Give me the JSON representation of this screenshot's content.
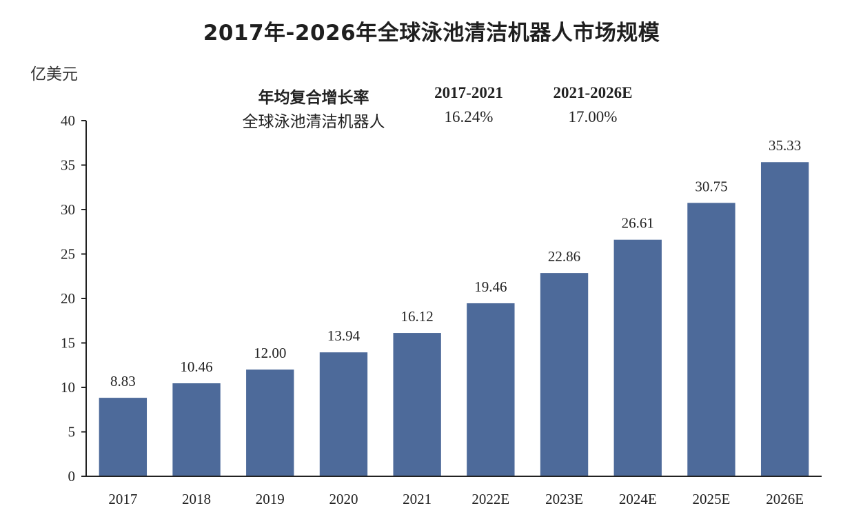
{
  "chart_data": {
    "type": "bar",
    "title": "2017年-2026年全球泳池清洁机器人市场规模",
    "ylabel": "亿美元",
    "xlabel": "",
    "ylim": [
      0,
      40
    ],
    "yticks": [
      "0",
      "5",
      "10",
      "15",
      "20",
      "25",
      "30",
      "35",
      "40"
    ],
    "categories": [
      "2017",
      "2018",
      "2019",
      "2020",
      "2021",
      "2022E",
      "2023E",
      "2024E",
      "2025E",
      "2026E"
    ],
    "values": [
      8.83,
      10.46,
      12.0,
      13.94,
      16.12,
      19.46,
      22.86,
      26.61,
      30.75,
      35.33
    ],
    "value_labels": [
      "8.83",
      "10.46",
      "12.00",
      "13.94",
      "16.12",
      "19.46",
      "22.86",
      "26.61",
      "30.75",
      "35.33"
    ],
    "bar_color": "#4d6a9a",
    "grid": false,
    "cagr_table": {
      "header": [
        "年均复合增长率",
        "2017-2021",
        "2021-2026E"
      ],
      "rows": [
        [
          "全球泳池清洁机器人",
          "16.24%",
          "17.00%"
        ]
      ]
    }
  }
}
